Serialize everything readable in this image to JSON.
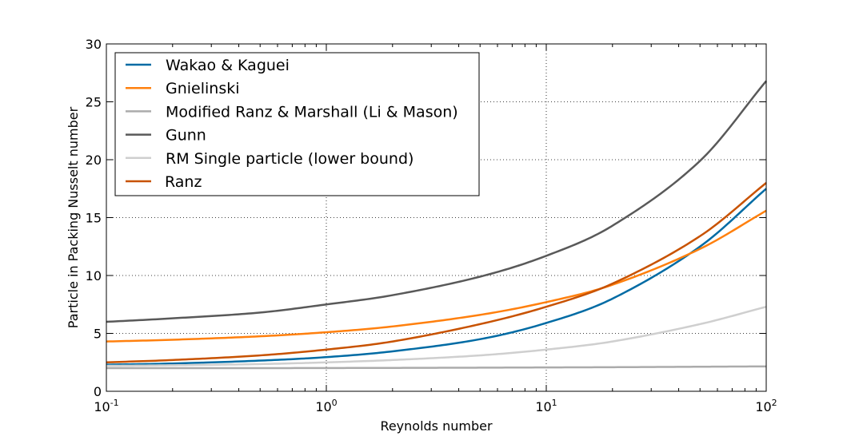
{
  "chart_data": {
    "type": "line",
    "title": "",
    "xlabel": "Reynolds number",
    "ylabel": "Particle in Packing Nusselt number",
    "xscale": "log",
    "xlim": [
      0.1,
      100
    ],
    "ylim": [
      0,
      30
    ],
    "grid": true,
    "legend_position": "top-left",
    "x_ticks": [
      {
        "value": 0.1,
        "base": "10",
        "exp": "-1"
      },
      {
        "value": 1,
        "base": "10",
        "exp": "0"
      },
      {
        "value": 10,
        "base": "10",
        "exp": "1"
      },
      {
        "value": 100,
        "base": "10",
        "exp": "2"
      }
    ],
    "y_ticks": [
      "0",
      "5",
      "10",
      "15",
      "20",
      "25",
      "30"
    ],
    "x": [
      0.1,
      0.2,
      0.5,
      1,
      2,
      5,
      10,
      20,
      50,
      100
    ],
    "series": [
      {
        "name": "Wakao & Kaguei",
        "color": "#006ba4",
        "values": [
          2.3,
          2.4,
          2.65,
          2.95,
          3.45,
          4.5,
          5.9,
          8.0,
          12.5,
          17.5
        ]
      },
      {
        "name": "Gnielinski",
        "color": "#ff800e",
        "values": [
          4.3,
          4.45,
          4.75,
          5.1,
          5.6,
          6.6,
          7.7,
          9.2,
          12.3,
          15.6
        ]
      },
      {
        "name": "Modified Ranz & Marshall (Li & Mason)",
        "color": "#ababab",
        "values": [
          2.0,
          2.0,
          2.0,
          2.01,
          2.02,
          2.04,
          2.06,
          2.08,
          2.12,
          2.15
        ]
      },
      {
        "name": "Gunn",
        "color": "#595959",
        "values": [
          6.0,
          6.3,
          6.8,
          7.5,
          8.3,
          9.9,
          11.7,
          14.3,
          19.9,
          26.8
        ]
      },
      {
        "name": "RM Single particle (lower bound)",
        "color": "#cfcfcf",
        "values": [
          2.2,
          2.25,
          2.35,
          2.5,
          2.7,
          3.1,
          3.6,
          4.3,
          5.8,
          7.3
        ]
      },
      {
        "name": "Ranz",
        "color": "#c85200",
        "values": [
          2.5,
          2.7,
          3.1,
          3.6,
          4.3,
          5.8,
          7.3,
          9.3,
          13.4,
          18.0
        ]
      }
    ]
  }
}
